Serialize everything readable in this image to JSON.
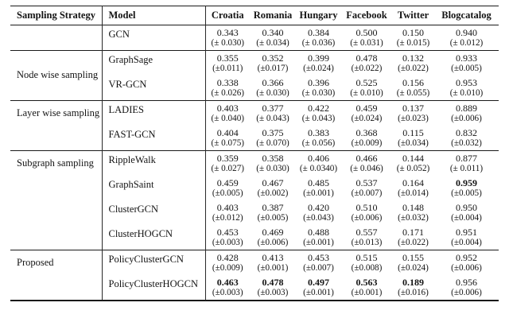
{
  "table": {
    "headers": [
      "Sampling Strategy",
      "Model",
      "Croatia",
      "Romania",
      "Hungary",
      "Facebook",
      "Twitter",
      "Blogcatalog"
    ],
    "groups": [
      {
        "strategy": "",
        "rows": [
          {
            "model": "GCN",
            "cells": [
              {
                "v": "0.343",
                "s": "(± 0.030)",
                "b": false
              },
              {
                "v": "0.340",
                "s": "(± 0.034)",
                "b": false
              },
              {
                "v": "0.384",
                "s": "(± 0.036)",
                "b": false
              },
              {
                "v": "0.500",
                "s": "(± 0.031)",
                "b": false
              },
              {
                "v": "0.150",
                "s": "(± 0.015)",
                "b": false
              },
              {
                "v": "0.940",
                "s": "(± 0.012)",
                "b": false
              }
            ]
          }
        ]
      },
      {
        "strategy": "Node wise sampling",
        "rows": [
          {
            "model": "GraphSage",
            "cells": [
              {
                "v": "0.355",
                "s": "(±0.011)",
                "b": false
              },
              {
                "v": "0.352",
                "s": "(±0.017)",
                "b": false
              },
              {
                "v": "0.399",
                "s": "(±0.024)",
                "b": false
              },
              {
                "v": "0.478",
                "s": "(±0.022)",
                "b": false
              },
              {
                "v": "0.132",
                "s": "(±0.022)",
                "b": false
              },
              {
                "v": "0.933",
                "s": "(±0.005)",
                "b": false
              }
            ]
          },
          {
            "model": "VR-GCN",
            "cells": [
              {
                "v": "0.338",
                "s": "(± 0.026)",
                "b": false
              },
              {
                "v": "0.366",
                "s": "(± 0.030)",
                "b": false
              },
              {
                "v": "0.396",
                "s": "(± 0.030)",
                "b": false
              },
              {
                "v": "0.525",
                "s": "(± 0.010)",
                "b": false
              },
              {
                "v": "0.156",
                "s": "(± 0.055)",
                "b": false
              },
              {
                "v": "0.953",
                "s": "(± 0.010)",
                "b": false
              }
            ]
          }
        ]
      },
      {
        "strategy": "Layer wise sampling",
        "rows": [
          {
            "model": "LADIES",
            "cells": [
              {
                "v": "0.403",
                "s": "(± 0.040)",
                "b": false
              },
              {
                "v": "0.377",
                "s": "(± 0.043)",
                "b": false
              },
              {
                "v": "0.422",
                "s": "(± 0.043)",
                "b": false
              },
              {
                "v": "0.459",
                "s": "(±0.024)",
                "b": false
              },
              {
                "v": "0.137",
                "s": "(±0.023)",
                "b": false
              },
              {
                "v": "0.889",
                "s": "(±0.006)",
                "b": false
              }
            ]
          },
          {
            "model": "FAST-GCN",
            "cells": [
              {
                "v": "0.404",
                "s": "(± 0.075)",
                "b": false
              },
              {
                "v": "0.375",
                "s": "(± 0.070)",
                "b": false
              },
              {
                "v": "0.383",
                "s": "(± 0.056)",
                "b": false
              },
              {
                "v": "0.368",
                "s": "(±0.009)",
                "b": false
              },
              {
                "v": "0.115",
                "s": "(±0.034)",
                "b": false
              },
              {
                "v": "0.832",
                "s": "(±0.032)",
                "b": false
              }
            ]
          }
        ]
      },
      {
        "strategy": "Subgraph sampling",
        "rows": [
          {
            "model": "RippleWalk",
            "cells": [
              {
                "v": "0.359",
                "s": "(± 0.027)",
                "b": false
              },
              {
                "v": "0.358",
                "s": "(± 0.030)",
                "b": false
              },
              {
                "v": "0.406",
                "s": "(± 0.0340)",
                "b": false
              },
              {
                "v": "0.466",
                "s": "(± 0.046)",
                "b": false
              },
              {
                "v": "0.144",
                "s": "(± 0.052)",
                "b": false
              },
              {
                "v": "0.877",
                "s": "(± 0.011)",
                "b": false
              }
            ]
          },
          {
            "model": "GraphSaint",
            "cells": [
              {
                "v": "0.459",
                "s": "(±0.005)",
                "b": false
              },
              {
                "v": "0.467",
                "s": "(±0.002)",
                "b": false
              },
              {
                "v": "0.485",
                "s": "(±0.001)",
                "b": false
              },
              {
                "v": "0.537",
                "s": "(±0.007)",
                "b": false
              },
              {
                "v": "0.164",
                "s": "(±0.014)",
                "b": false
              },
              {
                "v": "0.959",
                "s": "(±0.005)",
                "b": true
              }
            ]
          },
          {
            "model": "ClusterGCN",
            "cells": [
              {
                "v": "0.403",
                "s": "(±0.012)",
                "b": false
              },
              {
                "v": "0.387",
                "s": "(±0.005)",
                "b": false
              },
              {
                "v": "0.420",
                "s": "(±0.043)",
                "b": false
              },
              {
                "v": "0.510",
                "s": "(±0.006)",
                "b": false
              },
              {
                "v": "0.148",
                "s": "(±0.032)",
                "b": false
              },
              {
                "v": "0.950",
                "s": "(±0.004)",
                "b": false
              }
            ]
          },
          {
            "model": "ClusterHOGCN",
            "cells": [
              {
                "v": "0.453",
                "s": "(±0.003)",
                "b": false
              },
              {
                "v": "0.469",
                "s": "(±0.006)",
                "b": false
              },
              {
                "v": "0.488",
                "s": "(±0.001)",
                "b": false
              },
              {
                "v": "0.557",
                "s": "(±0.013)",
                "b": false
              },
              {
                "v": "0.171",
                "s": "(±0.022)",
                "b": false
              },
              {
                "v": "0.951",
                "s": "(±0.004)",
                "b": false
              }
            ]
          }
        ]
      },
      {
        "strategy": "Proposed",
        "rows": [
          {
            "model": "PolicyClusterGCN",
            "cells": [
              {
                "v": "0.428",
                "s": "(±0.009)",
                "b": false
              },
              {
                "v": "0.413",
                "s": "(±0.001)",
                "b": false
              },
              {
                "v": "0.453",
                "s": "(±0.007)",
                "b": false
              },
              {
                "v": "0.515",
                "s": "(±0.008)",
                "b": false
              },
              {
                "v": "0.155",
                "s": "(±0.024)",
                "b": false
              },
              {
                "v": "0.952",
                "s": "(±0.006)",
                "b": false
              }
            ]
          },
          {
            "model": "PolicyClusterHOGCN",
            "cells": [
              {
                "v": "0.463",
                "s": "(±0.003)",
                "b": true
              },
              {
                "v": "0.478",
                "s": "(±0.003)",
                "b": true
              },
              {
                "v": "0.497",
                "s": "(±0.001)",
                "b": true
              },
              {
                "v": "0.563",
                "s": "(±0.001)",
                "b": true
              },
              {
                "v": "0.189",
                "s": "(±0.016)",
                "b": true
              },
              {
                "v": "0.956",
                "s": "(±0.006)",
                "b": false
              }
            ]
          }
        ]
      }
    ]
  }
}
